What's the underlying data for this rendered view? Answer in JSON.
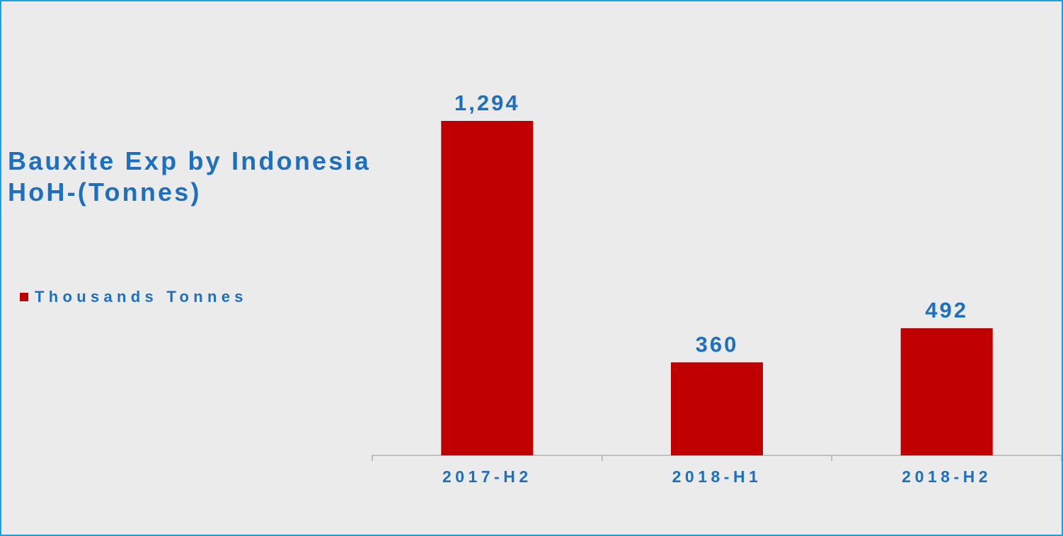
{
  "chart_data": {
    "type": "bar",
    "title": "Bauxite Exp by Indonesia HoH-(Tonnes)",
    "categories": [
      "2017-H2",
      "2018-H1",
      "2018-H2"
    ],
    "series": [
      {
        "name": "Thousands Tonnes",
        "values": [
          1294,
          360,
          492
        ],
        "data_labels": [
          "1,294",
          "360",
          "492"
        ],
        "color": "#c00000"
      }
    ],
    "ylim": [
      0,
      1294
    ],
    "grid": false,
    "legend_position": "left",
    "colors": {
      "bar": "#c00000",
      "text": "#1f6fbf",
      "axis": "#a6a6a6",
      "background": "#ebebeb",
      "border": "#1fa0d8"
    }
  }
}
